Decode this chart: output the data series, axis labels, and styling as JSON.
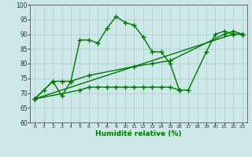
{
  "xlabel": "Humidité relative (%)",
  "background_color": "#cce8e8",
  "grid_color": "#aacccc",
  "line_color": "#007700",
  "xlim": [
    -0.5,
    23.5
  ],
  "ylim": [
    60,
    100
  ],
  "yticks": [
    60,
    65,
    70,
    75,
    80,
    85,
    90,
    95,
    100
  ],
  "xticks": [
    0,
    1,
    2,
    3,
    4,
    5,
    6,
    7,
    8,
    9,
    10,
    11,
    12,
    13,
    14,
    15,
    16,
    17,
    18,
    19,
    20,
    21,
    22,
    23
  ],
  "line1_x": [
    0,
    1,
    2,
    3,
    4,
    5,
    6,
    7,
    8,
    9,
    10,
    11,
    12,
    13,
    14,
    15,
    16,
    17,
    19,
    20,
    21,
    22,
    23
  ],
  "line1_y": [
    68,
    71,
    74,
    69,
    74,
    88,
    88,
    87,
    92,
    96,
    94,
    93,
    89,
    84,
    84,
    80,
    71,
    71,
    84,
    90,
    91,
    90,
    90
  ],
  "line2_x": [
    0,
    2,
    3,
    4,
    6,
    11,
    13,
    15,
    21,
    22,
    23
  ],
  "line2_y": [
    68,
    74,
    74,
    74,
    76,
    79,
    80,
    81,
    90,
    91,
    90
  ],
  "line3_x": [
    0,
    5,
    6,
    7,
    8,
    9,
    10,
    11,
    12,
    13,
    14,
    15,
    16
  ],
  "line3_y": [
    68,
    71,
    72,
    72,
    72,
    72,
    72,
    72,
    72,
    72,
    72,
    72,
    71
  ],
  "line4_x": [
    0,
    22,
    23
  ],
  "line4_y": [
    68,
    90,
    90
  ]
}
